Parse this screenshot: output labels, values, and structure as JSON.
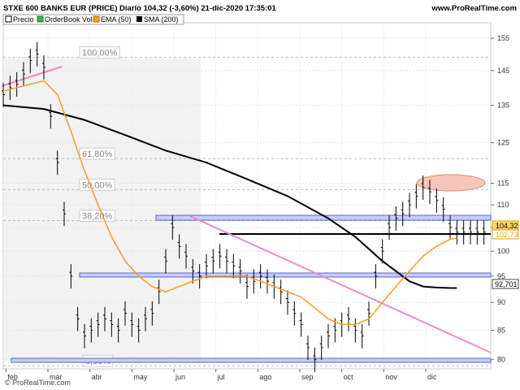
{
  "header": {
    "title": "STXE 600 BANKS EUR (PRICE) Diario 104,32 (-3,60%) 21-dic-2020 17:35:01",
    "site": "www.ProRealTime.com"
  },
  "legend": [
    {
      "label": "Precio",
      "color": "#000000"
    },
    {
      "label": "OrderBook Vol",
      "color": "#3cb44b"
    },
    {
      "label": "EMA (50)",
      "color": "#ff9a1a"
    },
    {
      "label": "SMA (200)",
      "color": "#000000"
    }
  ],
  "footer": "© ProRealTime.com",
  "price_tags": {
    "last": "104,32",
    "ema": "102,73",
    "sma": "92,701"
  },
  "fib_labels": [
    "100,00%",
    "61,80%",
    "50,00%",
    "38,20%",
    "0,00%"
  ],
  "chart_data": {
    "type": "line",
    "title": "STXE 600 BANKS EUR (PRICE) Diario 104,32 (-3,60%) 21-dic-2020 17:35:01",
    "x_ticks": [
      "feb",
      "mar",
      "abr",
      "may",
      "jun",
      "jul",
      "ago",
      "sep",
      "oct",
      "nov",
      "dic"
    ],
    "y_ticks": [
      80,
      85,
      90,
      95,
      100,
      105,
      110,
      115,
      125,
      135,
      145,
      155
    ],
    "y_scale": "log",
    "ylim": [
      78.5,
      160
    ],
    "xlim": [
      0,
      360
    ],
    "grid": true,
    "series": [
      {
        "name": "Precio",
        "type": "ohlc-bars",
        "color": "#000000",
        "x": [
          0,
          5,
          10,
          15,
          20,
          25,
          30,
          35,
          40,
          45,
          50,
          55,
          60,
          65,
          70,
          75,
          80,
          85,
          90,
          95,
          100,
          105,
          110,
          115,
          120,
          125,
          130,
          135,
          140,
          145,
          150,
          155,
          160,
          165,
          170,
          175,
          180,
          185,
          190,
          195,
          200,
          205,
          210,
          215,
          220,
          225,
          230,
          235,
          240,
          245,
          250,
          255,
          260,
          265,
          270,
          275,
          280,
          285,
          290,
          295,
          300,
          305,
          310,
          315,
          320,
          325,
          330,
          335,
          340,
          345,
          350,
          355
        ],
        "values": [
          138,
          140,
          141,
          144,
          148,
          150,
          146,
          132,
          120,
          108,
          95,
          87,
          84,
          85,
          86,
          87,
          86,
          85,
          88,
          86,
          85,
          87,
          88,
          92,
          98,
          105,
          101,
          99,
          96,
          95,
          97,
          98,
          99,
          98,
          97,
          96,
          93,
          94,
          95,
          94,
          93,
          92,
          90,
          88,
          86,
          82,
          80,
          82,
          84,
          85,
          86,
          87,
          85,
          84,
          88,
          95,
          100,
          105,
          107,
          108,
          110,
          112,
          114,
          113,
          111,
          109,
          105,
          104,
          104,
          104,
          104,
          104
        ]
      },
      {
        "name": "EMA (50)",
        "color": "#ff9a1a",
        "x": [
          0,
          20,
          30,
          40,
          50,
          60,
          70,
          80,
          90,
          100,
          110,
          120,
          130,
          140,
          150,
          160,
          170,
          180,
          190,
          200,
          210,
          220,
          230,
          240,
          250,
          260,
          270,
          280,
          290,
          300,
          310,
          320,
          330,
          335
        ],
        "values": [
          139,
          141,
          142,
          138,
          128,
          118,
          110,
          103,
          98,
          95,
          93,
          92,
          93,
          94,
          95,
          95,
          95,
          95,
          94,
          93,
          92,
          91,
          89,
          87,
          86,
          86,
          87,
          90,
          93,
          96,
          99,
          101,
          102.5,
          102.73
        ]
      },
      {
        "name": "SMA (200)",
        "color": "#000000",
        "x": [
          0,
          30,
          60,
          90,
          120,
          150,
          180,
          210,
          240,
          260,
          280,
          300,
          310,
          320,
          330,
          335
        ],
        "values": [
          135,
          134,
          131,
          127,
          123,
          120,
          116,
          112,
          107,
          103,
          98,
          94,
          93,
          92.8,
          92.7,
          92.701
        ]
      }
    ],
    "fibonacci": [
      {
        "level": "100,00%",
        "value": 149
      },
      {
        "level": "61,80%",
        "value": 121
      },
      {
        "level": "50,00%",
        "value": 113.5
      },
      {
        "level": "38,20%",
        "value": 106.5
      },
      {
        "level": "0,00%",
        "value": 79
      }
    ]
  }
}
